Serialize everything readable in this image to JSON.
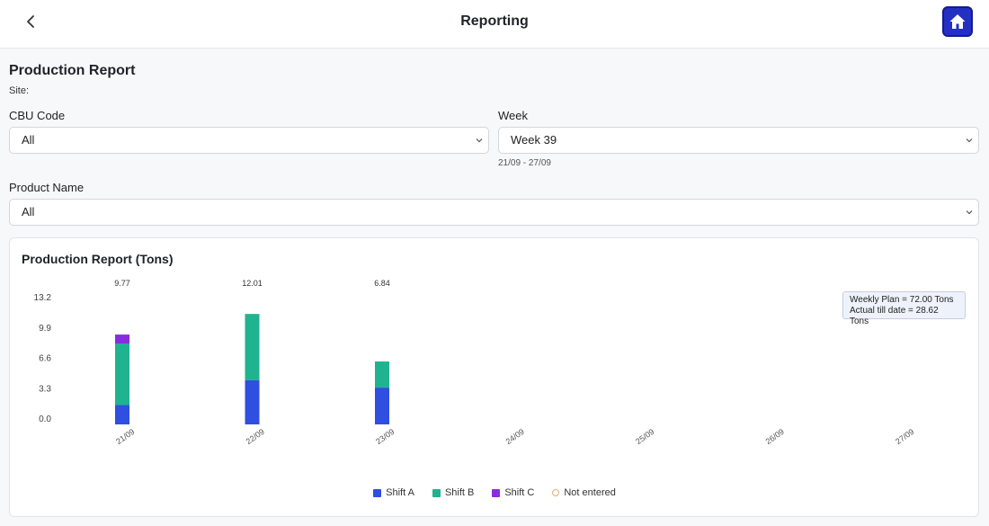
{
  "header": {
    "title": "Reporting",
    "back_icon": "chevron-left-icon",
    "home_icon": "home-icon",
    "home_color": "#2430c4"
  },
  "report": {
    "title": "Production Report",
    "site_label": "Site:"
  },
  "filters": {
    "cbu_code": {
      "label": "CBU Code",
      "value": "All"
    },
    "week": {
      "label": "Week",
      "value": "Week 39",
      "range": "21/09 - 27/09"
    },
    "product_name": {
      "label": "Product Name",
      "value": "All"
    }
  },
  "summary": {
    "weekly_plan": "Weekly Plan = 72.00 Tons",
    "actual_till_date": "Actual till date = 28.62 Tons"
  },
  "chart_data": {
    "type": "bar",
    "stacked": true,
    "title": "Production Report (Tons)",
    "xlabel": "",
    "ylabel": "",
    "categories": [
      "21/09",
      "22/09",
      "23/09",
      "24/09",
      "25/09",
      "26/09",
      "27/09"
    ],
    "ylim": [
      0,
      13.2
    ],
    "yticks": [
      "13.2",
      "9.9",
      "6.6",
      "3.3",
      "0.0"
    ],
    "totals": [
      "9.77",
      "12.01",
      "6.84",
      "",
      "",
      "",
      ""
    ],
    "series": [
      {
        "name": "Shift A",
        "color": "#2f4fe0",
        "values": [
          2.1,
          4.8,
          4.0,
          0,
          0,
          0,
          0
        ]
      },
      {
        "name": "Shift B",
        "color": "#1fb38f",
        "values": [
          6.7,
          7.21,
          2.84,
          0,
          0,
          0,
          0
        ]
      },
      {
        "name": "Shift C",
        "color": "#8a2be2",
        "values": [
          0.97,
          0,
          0,
          0,
          0,
          0,
          0
        ]
      }
    ],
    "legend": [
      {
        "name": "Shift A",
        "color": "#2f4fe0",
        "style": "square"
      },
      {
        "name": "Shift B",
        "color": "#1fb38f",
        "style": "square"
      },
      {
        "name": "Shift C",
        "color": "#8a2be2",
        "style": "square"
      },
      {
        "name": "Not entered",
        "color": "#e0b178",
        "style": "ring"
      }
    ],
    "grid": false,
    "legend_position": "bottom"
  }
}
